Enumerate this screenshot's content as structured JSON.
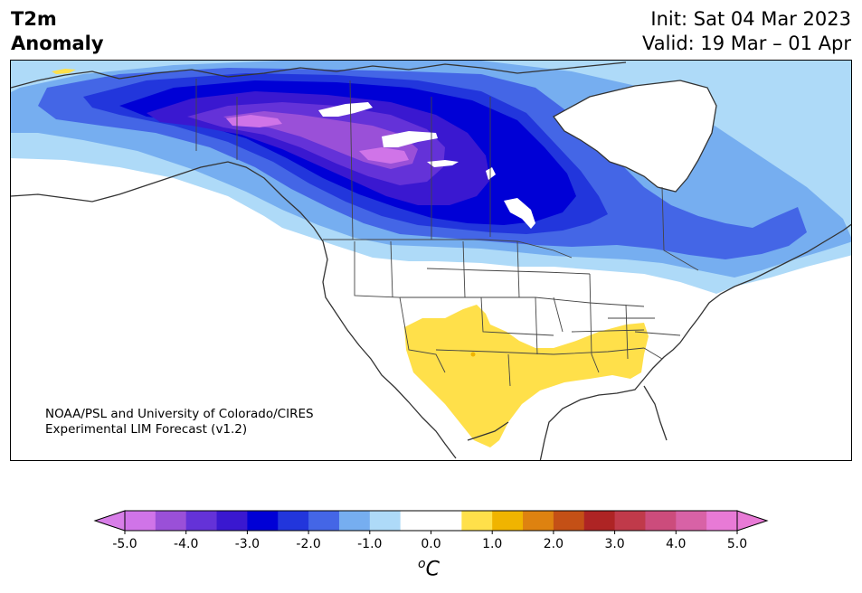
{
  "header": {
    "title_line1": "T2m",
    "title_line2": "Anomaly",
    "init": "Init: Sat 04 Mar 2023",
    "valid": "Valid: 19 Mar – 01 Apr"
  },
  "credit": {
    "line1": "NOAA/PSL and University of Colorado/CIRES",
    "line2": "Experimental LIM Forecast (v1.2)"
  },
  "colorbar": {
    "ticks": [
      "-5.0",
      "-4.0",
      "-3.0",
      "-2.0",
      "-1.0",
      "0.0",
      "1.0",
      "2.0",
      "3.0",
      "4.0",
      "5.0"
    ],
    "colors": [
      "#d074e8",
      "#9a50d8",
      "#6432d8",
      "#3a18d0",
      "#0000d6",
      "#2236dc",
      "#4466e6",
      "#76aef0",
      "#aedaf8",
      "#ffffff",
      "#ffffff",
      "#ffe04a",
      "#f0b400",
      "#de8210",
      "#c45016",
      "#ae2424",
      "#c03a4a",
      "#cc4c7c",
      "#d862a6",
      "#e87ad6"
    ],
    "under_color": "#d87ee8",
    "over_color": "#e87ad6",
    "units_base": "C",
    "units_sup": "o"
  },
  "map_colors": {
    "anom_m1": "#aedaf8",
    "anom_m15": "#76aef0",
    "anom_m2": "#4466e6",
    "anom_m25": "#2236dc",
    "anom_m3": "#0000d6",
    "anom_m35": "#3a18d0",
    "anom_m4": "#6432d8",
    "anom_m45": "#9a50d8",
    "anom_m5": "#d074e8",
    "anom_p1": "#ffe04a",
    "anom_p15": "#f0b400",
    "coast": "#333333",
    "borders": "#333333"
  }
}
